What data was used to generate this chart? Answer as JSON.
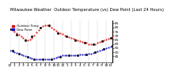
{
  "title": "Milwaukee Weather  Outdoor Temperature (vs) Dew Point (Last 24 Hours)",
  "temp_x": [
    0,
    1,
    2,
    3,
    4,
    5,
    6,
    7,
    8,
    9,
    10,
    11,
    12,
    13,
    14,
    15,
    16,
    17,
    18,
    19,
    20,
    21,
    22,
    23,
    24,
    25,
    26,
    27,
    28,
    29,
    30,
    31,
    32,
    33,
    34,
    35,
    36,
    37,
    38,
    39,
    40,
    41,
    42,
    43,
    44,
    45,
    46,
    47
  ],
  "temp_y": [
    78,
    77,
    75,
    73,
    71,
    69,
    67,
    65,
    64,
    65,
    67,
    70,
    74,
    77,
    80,
    82,
    83,
    83,
    82,
    80,
    78,
    76,
    74,
    73,
    72,
    70,
    69,
    68,
    67,
    66,
    65,
    64,
    63,
    62,
    61,
    61,
    60,
    60,
    60,
    60,
    61,
    62,
    63,
    64,
    65,
    66,
    67,
    68
  ],
  "dew_x": [
    0,
    1,
    2,
    3,
    4,
    5,
    6,
    7,
    8,
    9,
    10,
    11,
    12,
    13,
    14,
    15,
    16,
    17,
    18,
    19,
    20,
    21,
    22,
    23,
    24,
    25,
    26,
    27,
    28,
    29,
    30,
    31,
    32,
    33,
    34,
    35,
    36,
    37,
    38,
    39,
    40,
    41,
    42,
    43,
    44,
    45,
    46,
    47
  ],
  "dew_y": [
    52,
    51,
    50,
    49,
    48,
    47,
    46,
    45,
    44,
    43,
    42,
    41,
    41,
    41,
    41,
    41,
    41,
    41,
    41,
    41,
    42,
    43,
    44,
    45,
    46,
    46,
    46,
    46,
    46,
    46,
    46,
    46,
    47,
    47,
    47,
    47,
    48,
    48,
    49,
    50,
    51,
    52,
    53,
    54,
    55,
    56,
    57,
    58
  ],
  "black_x": [
    0,
    3,
    7,
    10,
    14,
    18,
    22,
    26,
    30,
    34,
    38,
    42,
    46
  ],
  "black_y": [
    78,
    71,
    64,
    69,
    80,
    83,
    73,
    69,
    64,
    61,
    60,
    63,
    67
  ],
  "black_x2": [
    1,
    4,
    8,
    11,
    15,
    19,
    23,
    27,
    31,
    35,
    39,
    43,
    47
  ],
  "black_y2": [
    52,
    48,
    44,
    41,
    41,
    41,
    44,
    46,
    46,
    47,
    50,
    54,
    58
  ],
  "temp_color": "#dd0000",
  "dew_color": "#0000cc",
  "outdoor_color": "#111111",
  "bg_color": "#ffffff",
  "grid_color": "#999999",
  "ylim": [
    38,
    88
  ],
  "xlim": [
    0,
    47
  ],
  "yticks_right": [
    85,
    80,
    75,
    70,
    65,
    60,
    55,
    50,
    45
  ],
  "ylabel_right": [
    "85",
    "80",
    "75",
    "70",
    "65",
    "60",
    "55",
    "50",
    "45"
  ],
  "xtick_labels": [
    "12",
    "1",
    "2",
    "3",
    "4",
    "5",
    "6",
    "7",
    "8",
    "9",
    "10",
    "11",
    "12",
    "1",
    "2",
    "3",
    "4",
    "5",
    "6",
    "7",
    "8",
    "9",
    "10",
    "11"
  ],
  "xtick_positions": [
    0,
    2,
    4,
    6,
    8,
    10,
    12,
    14,
    16,
    18,
    20,
    22,
    24,
    26,
    28,
    30,
    32,
    34,
    36,
    38,
    40,
    42,
    44,
    46
  ],
  "vgrid_positions": [
    0,
    4,
    8,
    12,
    16,
    20,
    24,
    28,
    32,
    36,
    40,
    44
  ],
  "title_fontsize": 3.8,
  "tick_fontsize": 3.2,
  "legend_labels": [
    "Outdoor Temp",
    "Dew Point"
  ],
  "legend_colors": [
    "#dd0000",
    "#0000cc"
  ]
}
